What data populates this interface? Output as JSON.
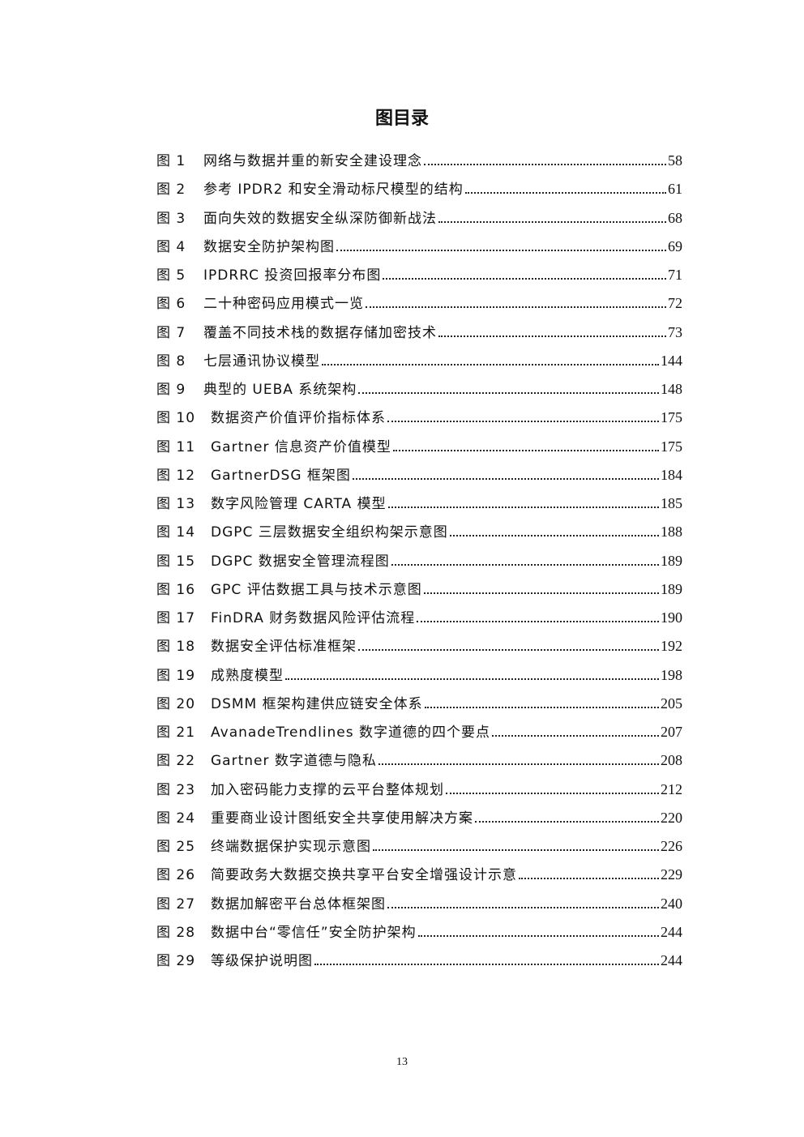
{
  "header": {
    "title": "图目录"
  },
  "entries": [
    {
      "label": "图 1",
      "title": "网络与数据并重的新安全建设理念",
      "page": "58"
    },
    {
      "label": "图 2",
      "title": "参考 IPDR2 和安全滑动标尺模型的结构",
      "page": "61"
    },
    {
      "label": "图 3",
      "title": "面向失效的数据安全纵深防御新战法",
      "page": "68"
    },
    {
      "label": "图 4",
      "title": "数据安全防护架构图",
      "page": "69"
    },
    {
      "label": "图 5",
      "title": "IPDRRC 投资回报率分布图",
      "page": "71"
    },
    {
      "label": "图 6",
      "title": "二十种密码应用模式一览",
      "page": "72"
    },
    {
      "label": "图 7",
      "title": "覆盖不同技术栈的数据存储加密技术",
      "page": "73"
    },
    {
      "label": "图 8",
      "title": "七层通讯协议模型",
      "page": "144"
    },
    {
      "label": "图 9",
      "title": "典型的 UEBA 系统架构",
      "page": "148"
    },
    {
      "label": "图 10",
      "title": "数据资产价值评价指标体系",
      "page": "175"
    },
    {
      "label": "图 11",
      "title": "Gartner 信息资产价值模型",
      "page": "175"
    },
    {
      "label": "图 12",
      "title": "GartnerDSG 框架图",
      "page": "184"
    },
    {
      "label": "图 13",
      "title": "数字风险管理 CARTA 模型",
      "page": "185"
    },
    {
      "label": "图 14",
      "title": "DGPC 三层数据安全组织构架示意图",
      "page": "188"
    },
    {
      "label": "图 15",
      "title": "DGPC 数据安全管理流程图",
      "page": "189"
    },
    {
      "label": "图 16",
      "title": "GPC 评估数据工具与技术示意图",
      "page": "189"
    },
    {
      "label": "图 17",
      "title": "FinDRA 财务数据风险评估流程",
      "page": "190"
    },
    {
      "label": "图 18",
      "title": "数据安全评估标准框架",
      "page": "192"
    },
    {
      "label": "图 19",
      "title": "成熟度模型",
      "page": "198"
    },
    {
      "label": "图 20",
      "title": "DSMM 框架构建供应链安全体系",
      "page": "205"
    },
    {
      "label": "图 21",
      "title": "AvanadeTrendlines 数字道德的四个要点",
      "page": "207"
    },
    {
      "label": "图 22",
      "title": "Gartner 数字道德与隐私",
      "page": "208"
    },
    {
      "label": "图 23",
      "title": "加入密码能力支撑的云平台整体规划",
      "page": "212"
    },
    {
      "label": "图 24",
      "title": "重要商业设计图纸安全共享使用解决方案",
      "page": "220"
    },
    {
      "label": "图 25",
      "title": "终端数据保护实现示意图",
      "page": "226"
    },
    {
      "label": "图 26",
      "title": "简要政务大数据交换共享平台安全增强设计示意",
      "page": "229"
    },
    {
      "label": "图 27",
      "title": "数据加解密平台总体框架图",
      "page": "240"
    },
    {
      "label": "图 28",
      "title": "数据中台“零信任”安全防护架构",
      "page": "244"
    },
    {
      "label": "图 29",
      "title": "等级保护说明图",
      "page": "244"
    }
  ],
  "footer": {
    "page_number": "13"
  }
}
